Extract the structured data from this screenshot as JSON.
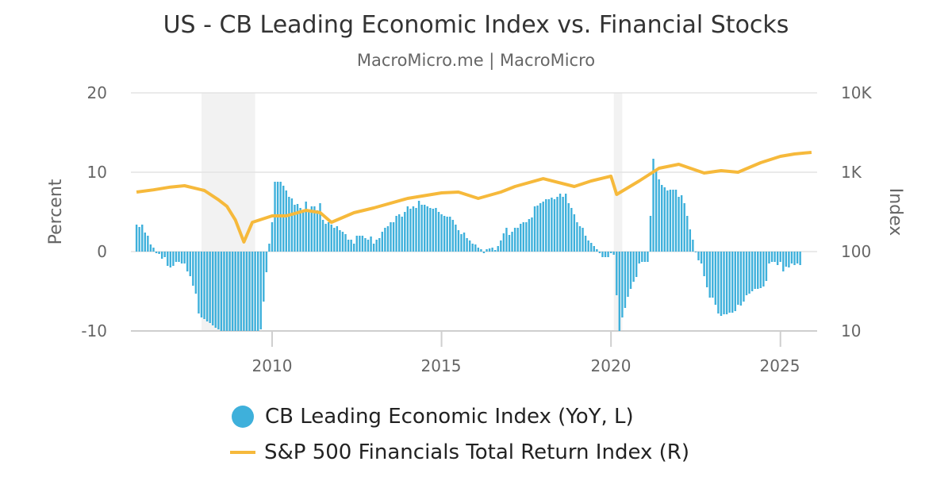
{
  "chart_data": {
    "type": "bar+line",
    "title": "US - CB Leading Economic Index vs. Financial Stocks",
    "subtitle": "MacroMicro.me | MacroMicro",
    "ylabel_left": "Percent",
    "ylabel_right": "Index",
    "ylim_left": [
      -10,
      20
    ],
    "ylim_right": [
      10,
      10000
    ],
    "right_scale": "log",
    "left_ticks": [
      "20",
      "10",
      "0",
      "-10"
    ],
    "right_ticks": [
      "10K",
      "1K",
      "100",
      "10"
    ],
    "x_ticks": [
      "2010",
      "2015",
      "2020",
      "2025"
    ],
    "xlim": [
      "2005-11",
      "2026-01"
    ],
    "grid": true,
    "legend_position": "bottom",
    "recession_shading": [
      [
        "2007-12",
        "2009-06"
      ],
      [
        "2020-02",
        "2020-04"
      ]
    ],
    "series": [
      {
        "name": "CB Leading Economic Index (YoY, L)",
        "type": "bar",
        "axis": "left",
        "color": "#3eb0db",
        "monthly_values": {
          "2006": [
            3.4,
            3.1,
            3.4,
            2.4,
            2.0,
            0.9,
            0.5,
            -0.2,
            -0.3,
            -0.9,
            -0.7,
            -1.8
          ],
          "2007": [
            -2.0,
            -1.8,
            -1.3,
            -1.3,
            -1.5,
            -1.5,
            -2.5,
            -3.1,
            -4.3,
            -5.3,
            -7.8,
            -8.3
          ],
          "2008": [
            -8.5,
            -8.8,
            -9.0,
            -9.3,
            -9.6,
            -9.8,
            -10,
            -10,
            -10,
            -10,
            -10,
            -10
          ],
          "2009": [
            -10,
            -10,
            -10,
            -10,
            -10,
            -10,
            -10,
            -10,
            -9.8,
            -6.3,
            -2.6,
            1.0
          ],
          "2010": [
            3.7,
            8.8,
            8.8,
            8.8,
            8.3,
            7.7,
            6.9,
            6.7,
            5.9,
            6.0,
            5.5,
            5.2
          ],
          "2011": [
            6.3,
            5.0,
            5.7,
            5.7,
            5.2,
            6.1,
            4.0,
            3.5,
            3.7,
            3.4,
            3.0,
            3.2
          ],
          "2012": [
            2.7,
            2.5,
            2.2,
            1.5,
            1.5,
            1.0,
            2.0,
            2.0,
            2.0,
            1.7,
            1.5,
            1.9
          ],
          "2013": [
            1.0,
            1.5,
            1.7,
            2.5,
            3.0,
            3.2,
            3.7,
            3.7,
            4.5,
            4.7,
            4.4,
            5.0
          ],
          "2014": [
            5.7,
            5.4,
            5.7,
            5.5,
            6.4,
            5.9,
            5.9,
            5.7,
            5.5,
            5.4,
            5.5,
            5.0
          ],
          "2015": [
            4.7,
            4.5,
            4.4,
            4.4,
            4.0,
            3.4,
            2.7,
            2.2,
            2.4,
            1.7,
            1.4,
            1.0
          ],
          "2016": [
            0.9,
            0.5,
            0.3,
            -0.2,
            0.3,
            0.4,
            0.5,
            0.2,
            0.7,
            1.4,
            2.3,
            3.0
          ],
          "2017": [
            2.1,
            2.5,
            3.0,
            3.0,
            3.5,
            3.7,
            3.7,
            4.1,
            4.3,
            5.7,
            5.8,
            6.1
          ],
          "2018": [
            6.3,
            6.6,
            6.6,
            6.8,
            6.6,
            6.9,
            7.3,
            6.9,
            7.3,
            6.1,
            5.5,
            4.7
          ],
          "2019": [
            3.7,
            3.2,
            3.0,
            2.0,
            1.4,
            1.1,
            0.7,
            0.3,
            -0.2,
            -0.7,
            -0.7,
            -0.7
          ],
          "2020": [
            -0.2,
            -0.4,
            -5.5,
            -10,
            -8.3,
            -7.1,
            -5.7,
            -4.7,
            -3.8,
            -3.2,
            -1.5,
            -1.3
          ],
          "2021": [
            -1.3,
            -1.3,
            4.5,
            11.7,
            10.2,
            9.1,
            8.4,
            8.1,
            7.7,
            7.8,
            7.8,
            7.8
          ],
          "2022": [
            6.9,
            7.1,
            6.1,
            4.5,
            2.8,
            1.5,
            -0.1,
            -1.1,
            -1.5,
            -3.1,
            -4.5,
            -5.8
          ],
          "2023": [
            -5.8,
            -6.7,
            -7.8,
            -8.1,
            -7.9,
            -7.9,
            -7.7,
            -7.7,
            -7.5,
            -6.7,
            -6.8,
            -6.3
          ],
          "2024": [
            -5.5,
            -5.3,
            -5.0,
            -4.7,
            -4.7,
            -4.6,
            -4.4,
            -3.7,
            -1.5,
            -1.3,
            -1.3,
            -1.7
          ],
          "2025": [
            -1.3,
            -2.5,
            -1.9,
            -2.0,
            -1.5,
            -1.7,
            -1.5,
            -1.7
          ]
        }
      },
      {
        "name": "S&P 500 Financials Total Return Index (R)",
        "type": "line",
        "axis": "right",
        "color": "#f6b93b",
        "points": [
          [
            "2006-01",
            562
          ],
          [
            "2006-07",
            600
          ],
          [
            "2007-01",
            650
          ],
          [
            "2007-06",
            676
          ],
          [
            "2008-01",
            589
          ],
          [
            "2008-06",
            450
          ],
          [
            "2008-09",
            372
          ],
          [
            "2008-12",
            250
          ],
          [
            "2009-03",
            132
          ],
          [
            "2009-06",
            234
          ],
          [
            "2010-01",
            282
          ],
          [
            "2010-06",
            282
          ],
          [
            "2011-01",
            331
          ],
          [
            "2011-06",
            310
          ],
          [
            "2011-10",
            234
          ],
          [
            "2012-06",
            309
          ],
          [
            "2013-01",
            355
          ],
          [
            "2014-01",
            468
          ],
          [
            "2015-01",
            550
          ],
          [
            "2015-07",
            562
          ],
          [
            "2016-02",
            468
          ],
          [
            "2016-10",
            562
          ],
          [
            "2017-03",
            660
          ],
          [
            "2018-01",
            830
          ],
          [
            "2018-12",
            660
          ],
          [
            "2019-06",
            776
          ],
          [
            "2020-01",
            891
          ],
          [
            "2020-03",
            525
          ],
          [
            "2020-11",
            776
          ],
          [
            "2021-06",
            1122
          ],
          [
            "2022-01",
            1259
          ],
          [
            "2022-10",
            977
          ],
          [
            "2023-04",
            1047
          ],
          [
            "2023-10",
            1000
          ],
          [
            "2024-06",
            1318
          ],
          [
            "2025-01",
            1585
          ],
          [
            "2025-06",
            1698
          ],
          [
            "2025-12",
            1778
          ]
        ]
      }
    ]
  }
}
